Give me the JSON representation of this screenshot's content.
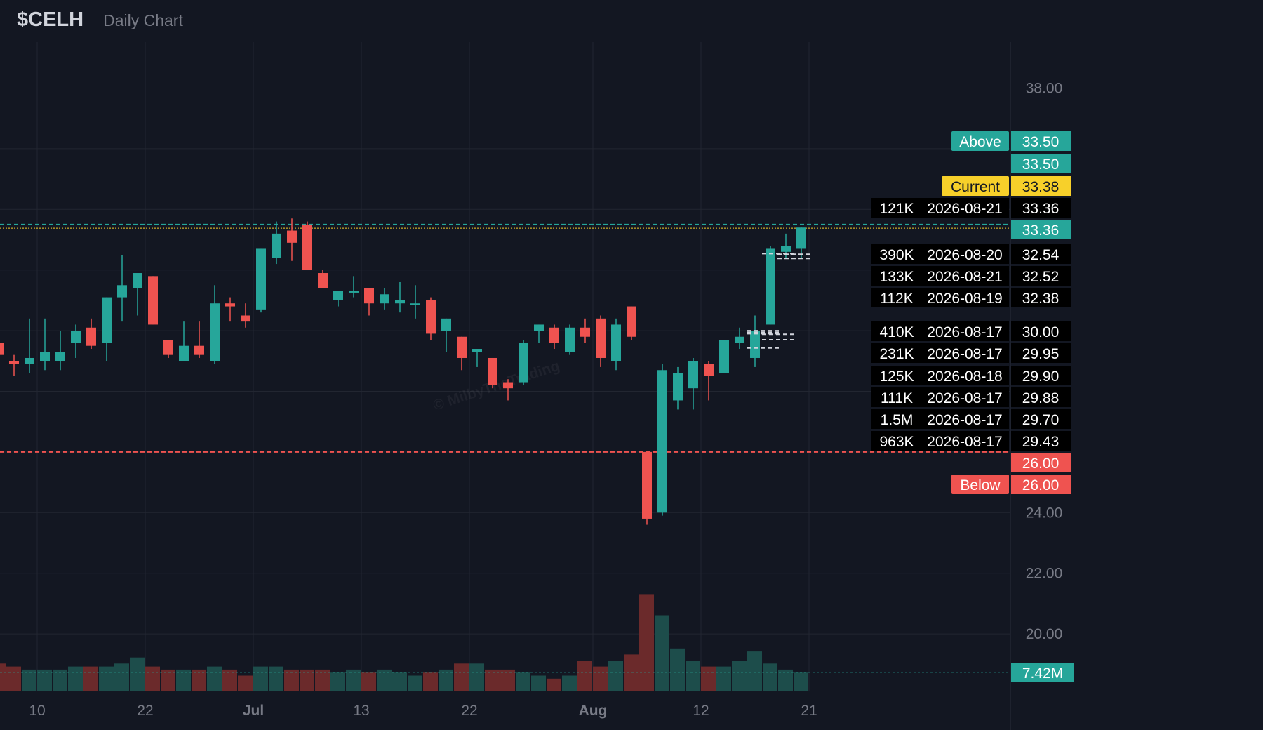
{
  "header": {
    "ticker": "$CELH",
    "subtitle": "Daily Chart"
  },
  "colors": {
    "background": "#131722",
    "grid": "#222631",
    "up": "#26a69a",
    "down": "#ef5350",
    "current": "#f7d02a",
    "axis_text": "#787b86",
    "volume_up": "#1d4d4b",
    "volume_down": "#6b2a2b"
  },
  "chart_data": {
    "type": "candlestick",
    "title": "$CELH",
    "subtitle": "Daily Chart",
    "price_axis": {
      "ticks": [
        20,
        22,
        24,
        38
      ],
      "tick_labels": [
        "20.00",
        "22.00",
        "24.00",
        "38.00"
      ],
      "visible_range": [
        18.2,
        39.3
      ]
    },
    "x_tick_labels": [
      {
        "label": "10",
        "after_index": 2
      },
      {
        "label": "22",
        "after_index": 9
      },
      {
        "label": "Jul",
        "after_index": 16
      },
      {
        "label": "13",
        "after_index": 23
      },
      {
        "label": "22",
        "after_index": 30
      },
      {
        "label": "Aug",
        "after_index": 38
      },
      {
        "label": "12",
        "after_index": 45
      },
      {
        "label": "21",
        "after_index": 52
      }
    ],
    "candles": [
      {
        "o": 29.6,
        "h": 29.9,
        "l": 29.1,
        "c": 29.2
      },
      {
        "o": 29.0,
        "h": 29.2,
        "l": 28.5,
        "c": 28.9
      },
      {
        "o": 28.9,
        "h": 30.4,
        "l": 28.6,
        "c": 29.1
      },
      {
        "o": 29.0,
        "h": 30.4,
        "l": 28.7,
        "c": 29.3
      },
      {
        "o": 29.0,
        "h": 30.0,
        "l": 28.7,
        "c": 29.3
      },
      {
        "o": 29.6,
        "h": 30.2,
        "l": 29.1,
        "c": 30.0
      },
      {
        "o": 30.1,
        "h": 30.4,
        "l": 29.4,
        "c": 29.5
      },
      {
        "o": 29.6,
        "h": 31.1,
        "l": 29.0,
        "c": 31.1
      },
      {
        "o": 31.1,
        "h": 32.5,
        "l": 30.3,
        "c": 31.5
      },
      {
        "o": 31.4,
        "h": 31.8,
        "l": 30.5,
        "c": 31.9
      },
      {
        "o": 31.8,
        "h": 31.8,
        "l": 30.2,
        "c": 30.2
      },
      {
        "o": 29.7,
        "h": 29.7,
        "l": 29.1,
        "c": 29.2
      },
      {
        "o": 29.0,
        "h": 30.3,
        "l": 29.0,
        "c": 29.5
      },
      {
        "o": 29.5,
        "h": 30.3,
        "l": 29.1,
        "c": 29.2
      },
      {
        "o": 29.0,
        "h": 31.5,
        "l": 28.9,
        "c": 30.9
      },
      {
        "o": 30.9,
        "h": 31.1,
        "l": 30.3,
        "c": 30.8
      },
      {
        "o": 30.5,
        "h": 30.9,
        "l": 30.1,
        "c": 30.3
      },
      {
        "o": 30.7,
        "h": 32.7,
        "l": 30.6,
        "c": 32.7
      },
      {
        "o": 32.4,
        "h": 33.6,
        "l": 32.2,
        "c": 33.2
      },
      {
        "o": 33.3,
        "h": 33.7,
        "l": 32.3,
        "c": 32.9
      },
      {
        "o": 33.5,
        "h": 33.6,
        "l": 32.0,
        "c": 32.0
      },
      {
        "o": 31.9,
        "h": 32.0,
        "l": 31.4,
        "c": 31.4
      },
      {
        "o": 31.0,
        "h": 31.3,
        "l": 30.8,
        "c": 31.3
      },
      {
        "o": 31.3,
        "h": 31.8,
        "l": 31.1,
        "c": 31.3
      },
      {
        "o": 31.4,
        "h": 31.4,
        "l": 30.5,
        "c": 30.9
      },
      {
        "o": 30.9,
        "h": 31.4,
        "l": 30.7,
        "c": 31.2
      },
      {
        "o": 30.9,
        "h": 31.6,
        "l": 30.6,
        "c": 31.0
      },
      {
        "o": 30.9,
        "h": 31.5,
        "l": 30.4,
        "c": 30.9
      },
      {
        "o": 31.0,
        "h": 31.1,
        "l": 29.7,
        "c": 29.9
      },
      {
        "o": 30.0,
        "h": 30.4,
        "l": 29.3,
        "c": 30.4
      },
      {
        "o": 29.8,
        "h": 29.8,
        "l": 28.7,
        "c": 29.1
      },
      {
        "o": 29.3,
        "h": 29.4,
        "l": 28.8,
        "c": 29.4
      },
      {
        "o": 29.1,
        "h": 29.1,
        "l": 28.1,
        "c": 28.2
      },
      {
        "o": 28.3,
        "h": 28.4,
        "l": 27.7,
        "c": 28.1
      },
      {
        "o": 28.3,
        "h": 29.7,
        "l": 28.2,
        "c": 29.6
      },
      {
        "o": 30.0,
        "h": 30.2,
        "l": 29.6,
        "c": 30.2
      },
      {
        "o": 30.1,
        "h": 30.2,
        "l": 29.4,
        "c": 29.6
      },
      {
        "o": 29.3,
        "h": 30.2,
        "l": 29.2,
        "c": 30.1
      },
      {
        "o": 30.1,
        "h": 30.4,
        "l": 29.6,
        "c": 29.8
      },
      {
        "o": 30.4,
        "h": 30.5,
        "l": 28.8,
        "c": 29.1
      },
      {
        "o": 29.0,
        "h": 30.4,
        "l": 28.7,
        "c": 30.2
      },
      {
        "o": 30.8,
        "h": 30.8,
        "l": 29.7,
        "c": 29.8
      },
      {
        "o": 26.0,
        "h": 26.0,
        "l": 23.6,
        "c": 23.8
      },
      {
        "o": 24.0,
        "h": 28.9,
        "l": 23.9,
        "c": 28.7
      },
      {
        "o": 27.7,
        "h": 28.8,
        "l": 27.4,
        "c": 28.6
      },
      {
        "o": 28.1,
        "h": 29.1,
        "l": 27.4,
        "c": 29.0
      },
      {
        "o": 28.9,
        "h": 29.0,
        "l": 27.7,
        "c": 28.5
      },
      {
        "o": 28.6,
        "h": 29.7,
        "l": 28.6,
        "c": 29.7
      },
      {
        "o": 29.6,
        "h": 30.1,
        "l": 29.4,
        "c": 29.8
      },
      {
        "o": 29.1,
        "h": 30.5,
        "l": 28.8,
        "c": 30.0
      },
      {
        "o": 30.2,
        "h": 32.8,
        "l": 30.2,
        "c": 32.7
      },
      {
        "o": 32.6,
        "h": 33.2,
        "l": 32.4,
        "c": 32.8
      },
      {
        "o": 32.7,
        "h": 33.4,
        "l": 32.4,
        "c": 33.4
      }
    ],
    "volume": [
      0.9,
      0.8,
      0.7,
      0.7,
      0.7,
      0.8,
      0.8,
      0.8,
      0.9,
      1.1,
      0.8,
      0.7,
      0.7,
      0.7,
      0.8,
      0.7,
      0.5,
      0.8,
      0.8,
      0.7,
      0.7,
      0.7,
      0.6,
      0.7,
      0.6,
      0.7,
      0.6,
      0.5,
      0.6,
      0.7,
      0.9,
      0.9,
      0.7,
      0.7,
      0.6,
      0.5,
      0.4,
      0.5,
      1.0,
      0.8,
      1.0,
      1.2,
      3.2,
      2.5,
      1.4,
      1.0,
      0.8,
      0.8,
      1.0,
      1.3,
      0.9,
      0.7,
      0.6
    ],
    "volume_label": "7.42M",
    "horizontal_lines": [
      {
        "name": "Above",
        "value": 33.5,
        "label": "Above",
        "price_label": "33.50",
        "color": "#26a69a"
      },
      {
        "name": "Current",
        "value": 33.38,
        "label": "Current",
        "price_label": "33.38",
        "color": "#f7d02a"
      },
      {
        "name": "Below",
        "value": 26.0,
        "label": "Below",
        "price_label": "26.00",
        "color": "#ef5350"
      }
    ],
    "extra_price_tags": [
      {
        "price_label": "33.50",
        "value": 33.5,
        "color": "#26a69a"
      },
      {
        "price_label": "33.36",
        "value": 33.36,
        "color": "#26a69a"
      },
      {
        "price_label": "26.00",
        "value": 26.0,
        "color": "#ef5350"
      }
    ],
    "block_trades": [
      {
        "size": "121K",
        "date": "2026-08-21",
        "price": "33.36"
      },
      {
        "size": "390K",
        "date": "2026-08-20",
        "price": "32.54"
      },
      {
        "size": "133K",
        "date": "2026-08-21",
        "price": "32.52"
      },
      {
        "size": "112K",
        "date": "2026-08-19",
        "price": "32.38"
      },
      {
        "size": "410K",
        "date": "2026-08-17",
        "price": "30.00"
      },
      {
        "size": "231K",
        "date": "2026-08-17",
        "price": "29.95"
      },
      {
        "size": "125K",
        "date": "2026-08-18",
        "price": "29.90"
      },
      {
        "size": "111K",
        "date": "2026-08-17",
        "price": "29.88"
      },
      {
        "size": "1.5M",
        "date": "2026-08-17",
        "price": "29.70"
      },
      {
        "size": "963K",
        "date": "2026-08-17",
        "price": "29.43"
      }
    ]
  }
}
